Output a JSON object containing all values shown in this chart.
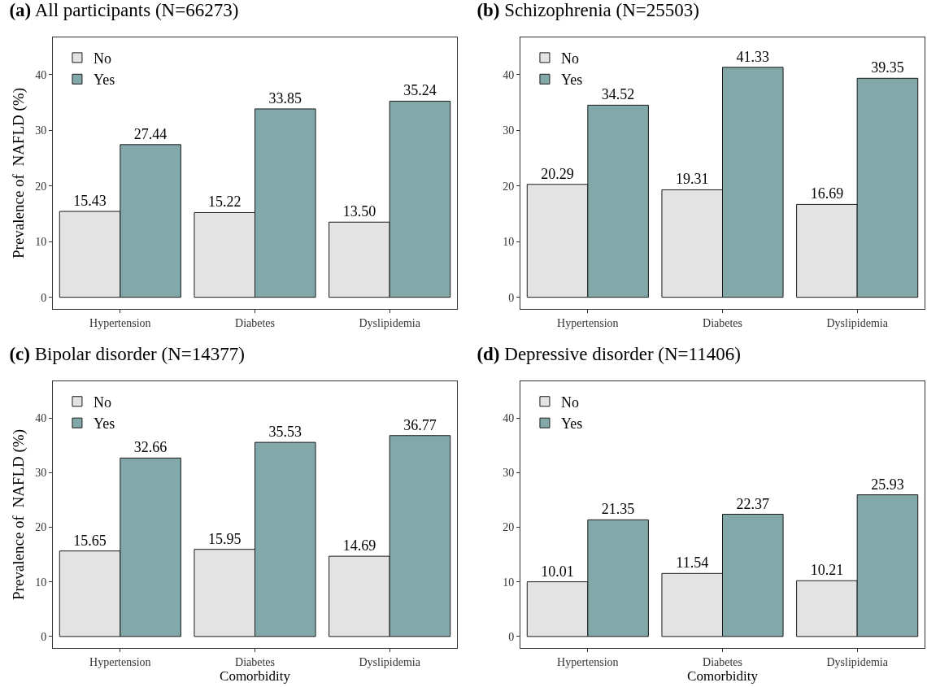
{
  "chart_data": [
    {
      "type": "bar",
      "title": "(a) All participants (N=66273)",
      "ylabel": "Prevalence of  NAFLD (%)",
      "categories": [
        "Hypertension",
        "Diabetes",
        "Dyslipidemia"
      ],
      "series": [
        {
          "name": "No",
          "color": "#e3e3e3",
          "values": [
            15.43,
            15.22,
            13.5
          ],
          "value_labels": [
            "15.43",
            "15.22",
            "13.50"
          ]
        },
        {
          "name": "Yes",
          "color": "#82a8aa",
          "values": [
            27.44,
            33.85,
            35.24
          ],
          "value_labels": [
            "27.44",
            "33.85",
            "35.24"
          ]
        }
      ],
      "ylim": [
        -2.1,
        46.7
      ],
      "yticks": [
        0,
        10,
        20,
        30,
        40
      ],
      "grid": false,
      "legend": "top left"
    },
    {
      "type": "bar",
      "title": "(b) Schizophrenia (N=25503)",
      "categories": [
        "Hypertension",
        "Diabetes",
        "Dyslipidemia"
      ],
      "series": [
        {
          "name": "No",
          "color": "#e3e3e3",
          "values": [
            20.29,
            19.31,
            16.69
          ],
          "value_labels": [
            "20.29",
            "19.31",
            "16.69"
          ]
        },
        {
          "name": "Yes",
          "color": "#82a8aa",
          "values": [
            34.52,
            41.33,
            39.35
          ],
          "value_labels": [
            "34.52",
            "41.33",
            "39.35"
          ]
        }
      ],
      "ylim": [
        -2.1,
        46.7
      ],
      "yticks": [
        0,
        10,
        20,
        30,
        40
      ],
      "grid": false,
      "legend": "top left"
    },
    {
      "type": "bar",
      "title": "(c) Bipolar disorder (N=14377)",
      "xlabel": "Comorbidity",
      "ylabel": "Prevalence of  NAFLD (%)",
      "categories": [
        "Hypertension",
        "Diabetes",
        "Dyslipidemia"
      ],
      "series": [
        {
          "name": "No",
          "color": "#e3e3e3",
          "values": [
            15.65,
            15.95,
            14.69
          ],
          "value_labels": [
            "15.65",
            "15.95",
            "14.69"
          ]
        },
        {
          "name": "Yes",
          "color": "#82a8aa",
          "values": [
            32.66,
            35.53,
            36.77
          ],
          "value_labels": [
            "32.66",
            "35.53",
            "36.77"
          ]
        }
      ],
      "ylim": [
        -2.1,
        46.7
      ],
      "yticks": [
        0,
        10,
        20,
        30,
        40
      ],
      "grid": false,
      "legend": "top left"
    },
    {
      "type": "bar",
      "title": "(d) Depressive disorder (N=11406)",
      "xlabel": "Comorbidity",
      "categories": [
        "Hypertension",
        "Diabetes",
        "Dyslipidemia"
      ],
      "series": [
        {
          "name": "No",
          "color": "#e3e3e3",
          "values": [
            10.01,
            11.54,
            10.21
          ],
          "value_labels": [
            "10.01",
            "11.54",
            "10.21"
          ]
        },
        {
          "name": "Yes",
          "color": "#82a8aa",
          "values": [
            21.35,
            22.37,
            25.93
          ],
          "value_labels": [
            "21.35",
            "22.37",
            "25.93"
          ]
        }
      ],
      "ylim": [
        -2.1,
        46.7
      ],
      "yticks": [
        0,
        10,
        20,
        30,
        40
      ],
      "grid": false,
      "legend": "top left"
    }
  ]
}
